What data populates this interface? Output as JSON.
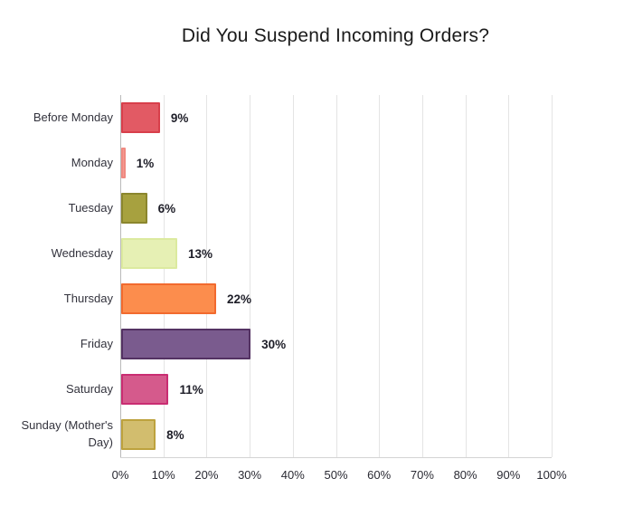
{
  "chart_data": {
    "type": "bar",
    "orientation": "horizontal",
    "title": "Did You Suspend Incoming Orders?",
    "categories": [
      "Before Monday",
      "Monday",
      "Tuesday",
      "Wednesday",
      "Thursday",
      "Friday",
      "Saturday",
      "Sunday (Mother's Day)"
    ],
    "values": [
      9,
      1,
      6,
      13,
      22,
      30,
      11,
      8
    ],
    "value_labels": [
      "9%",
      "1%",
      "6%",
      "13%",
      "22%",
      "30%",
      "11%",
      "8%"
    ],
    "bar_colors": [
      {
        "fill": "#e25a64",
        "border": "#d83f4b"
      },
      {
        "fill": "#f59a92",
        "border": "#f08a81"
      },
      {
        "fill": "#a7a13f",
        "border": "#8b862e"
      },
      {
        "fill": "#e6f0b4",
        "border": "#dcea9f"
      },
      {
        "fill": "#fc8d4d",
        "border": "#f26a2e"
      },
      {
        "fill": "#7a5b8e",
        "border": "#543263"
      },
      {
        "fill": "#d55a8c",
        "border": "#c92d72"
      },
      {
        "fill": "#d2bd6e",
        "border": "#bda23e"
      }
    ],
    "xlabel": "",
    "ylabel": "",
    "xlim": [
      0,
      100
    ],
    "x_tick_labels": [
      "0%",
      "10%",
      "20%",
      "30%",
      "40%",
      "50%",
      "60%",
      "70%",
      "80%",
      "90%",
      "100%"
    ],
    "grid": true,
    "legend": false
  },
  "colors": {
    "background": "#ffffff",
    "gridline": "#e4e4e4",
    "axis_line": "#b9b9b9",
    "bottom_axis": "#d4d4d4",
    "title_text": "#1a1a1a",
    "label_text": "#33333d",
    "value_text": "#1e1e28"
  }
}
